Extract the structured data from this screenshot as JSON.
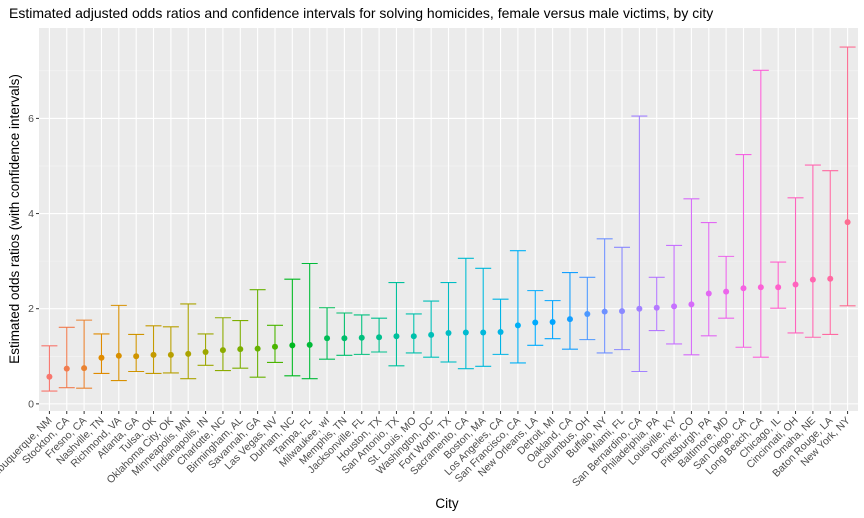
{
  "chart_data": {
    "type": "scatter",
    "title": "Estimated adjusted odds ratios and confidence intervals for solving homicides, female versus male victims, by city",
    "xlabel": "City",
    "ylabel": "Estimated odds ratios (with confidence intervals)",
    "ylim": [
      -0.15,
      7.9
    ],
    "yticks": [
      0,
      2,
      4,
      6
    ],
    "grid": true,
    "legend": "none",
    "panel_bg": "#ebebeb",
    "error_bars": true,
    "points": [
      {
        "city": "Albuquerque, NM",
        "or": 0.57,
        "lo": 0.27,
        "hi": 1.22,
        "color": "#F8766D"
      },
      {
        "city": "Stockton, CA",
        "or": 0.74,
        "lo": 0.34,
        "hi": 1.61,
        "color": "#F17D50"
      },
      {
        "city": "Fresno, CA",
        "or": 0.75,
        "lo": 0.33,
        "hi": 1.76,
        "color": "#EA8331"
      },
      {
        "city": "Nashville, TN",
        "or": 0.97,
        "lo": 0.64,
        "hi": 1.47,
        "color": "#E08B00"
      },
      {
        "city": "Richmond, VA",
        "or": 1.01,
        "lo": 0.49,
        "hi": 2.07,
        "color": "#D89000"
      },
      {
        "city": "Atlanta, GA",
        "or": 1.0,
        "lo": 0.68,
        "hi": 1.46,
        "color": "#CF9400"
      },
      {
        "city": "Tulsa, OK",
        "or": 1.03,
        "lo": 0.64,
        "hi": 1.64,
        "color": "#C49A00"
      },
      {
        "city": "Oklahoma City, OK",
        "or": 1.03,
        "lo": 0.65,
        "hi": 1.62,
        "color": "#B79F00"
      },
      {
        "city": "Minneapolis, MN",
        "or": 1.05,
        "lo": 0.53,
        "hi": 2.1,
        "color": "#ABA300"
      },
      {
        "city": "Indianapolis, IN",
        "or": 1.09,
        "lo": 0.81,
        "hi": 1.47,
        "color": "#9DA700"
      },
      {
        "city": "Charlotte, NC",
        "or": 1.13,
        "lo": 0.7,
        "hi": 1.81,
        "color": "#8CAB00"
      },
      {
        "city": "Birmingham, AL",
        "or": 1.15,
        "lo": 0.75,
        "hi": 1.75,
        "color": "#7CAE00"
      },
      {
        "city": "Savannah, GA",
        "or": 1.16,
        "lo": 0.56,
        "hi": 2.4,
        "color": "#67B100"
      },
      {
        "city": "Las Vegas, NV",
        "or": 1.2,
        "lo": 0.87,
        "hi": 1.65,
        "color": "#4AB500"
      },
      {
        "city": "Durham, NC",
        "or": 1.23,
        "lo": 0.59,
        "hi": 2.62,
        "color": "#00B81F"
      },
      {
        "city": "Tampa, FL",
        "or": 1.24,
        "lo": 0.53,
        "hi": 2.95,
        "color": "#00BA38"
      },
      {
        "city": "Milwaukee, wI",
        "or": 1.38,
        "lo": 0.94,
        "hi": 2.02,
        "color": "#00BC56"
      },
      {
        "city": "Memphis, TN",
        "or": 1.38,
        "lo": 1.02,
        "hi": 1.91,
        "color": "#00BE6C"
      },
      {
        "city": "Jacksonville, FL",
        "or": 1.39,
        "lo": 1.04,
        "hi": 1.87,
        "color": "#00BF7D"
      },
      {
        "city": "Houston, TX",
        "or": 1.4,
        "lo": 1.09,
        "hi": 1.8,
        "color": "#00C08E"
      },
      {
        "city": "San Antonio, TX",
        "or": 1.42,
        "lo": 0.8,
        "hi": 2.55,
        "color": "#00C19C"
      },
      {
        "city": "St. Louis, MO",
        "or": 1.42,
        "lo": 1.07,
        "hi": 1.89,
        "color": "#00C0AB"
      },
      {
        "city": "Washington, DC",
        "or": 1.45,
        "lo": 0.98,
        "hi": 2.16,
        "color": "#00BFB8"
      },
      {
        "city": "Fort Worth, TX",
        "or": 1.49,
        "lo": 0.88,
        "hi": 2.55,
        "color": "#00BDC4"
      },
      {
        "city": "Sacramento, CA",
        "or": 1.5,
        "lo": 0.74,
        "hi": 3.06,
        "color": "#00BBD0"
      },
      {
        "city": "Boston, MA",
        "or": 1.5,
        "lo": 0.79,
        "hi": 2.85,
        "color": "#00B8DB"
      },
      {
        "city": "Los Angeles, CA",
        "or": 1.51,
        "lo": 1.04,
        "hi": 2.2,
        "color": "#00B4E5"
      },
      {
        "city": "San Francisco, CA",
        "or": 1.65,
        "lo": 0.86,
        "hi": 3.22,
        "color": "#00B0F6"
      },
      {
        "city": "New Orleans, LA",
        "or": 1.71,
        "lo": 1.23,
        "hi": 2.38,
        "color": "#00ABFD"
      },
      {
        "city": "Detroit, MI",
        "or": 1.72,
        "lo": 1.37,
        "hi": 2.17,
        "color": "#00A5FF"
      },
      {
        "city": "Oakland, CA",
        "or": 1.78,
        "lo": 1.15,
        "hi": 2.76,
        "color": "#139FFF"
      },
      {
        "city": "Columbus, OH",
        "or": 1.89,
        "lo": 1.35,
        "hi": 2.66,
        "color": "#4C98FF"
      },
      {
        "city": "Buffalo, NY",
        "or": 1.94,
        "lo": 1.07,
        "hi": 3.47,
        "color": "#6F91FF"
      },
      {
        "city": "Miami, FL",
        "or": 1.95,
        "lo": 1.14,
        "hi": 3.29,
        "color": "#8A89FF"
      },
      {
        "city": "San Bernardino, CA",
        "or": 2.0,
        "lo": 0.68,
        "hi": 6.05,
        "color": "#A181FF"
      },
      {
        "city": "Philadelphia, PA",
        "or": 2.02,
        "lo": 1.54,
        "hi": 2.66,
        "color": "#B579FF"
      },
      {
        "city": "Louisville, KY",
        "or": 2.05,
        "lo": 1.26,
        "hi": 3.33,
        "color": "#C771FF"
      },
      {
        "city": "Denver, CO",
        "or": 2.09,
        "lo": 1.03,
        "hi": 4.31,
        "color": "#D66BFA"
      },
      {
        "city": "Pittsburgh, PA",
        "or": 2.32,
        "lo": 1.43,
        "hi": 3.81,
        "color": "#E268F3"
      },
      {
        "city": "Baltimore, MD",
        "or": 2.36,
        "lo": 1.8,
        "hi": 3.1,
        "color": "#EC65EB"
      },
      {
        "city": "San Diego, CA",
        "or": 2.43,
        "lo": 1.19,
        "hi": 5.24,
        "color": "#F563E2"
      },
      {
        "city": "Long Beach, CA",
        "or": 2.45,
        "lo": 0.98,
        "hi": 7.01,
        "color": "#FB61D7"
      },
      {
        "city": "Chicago, IL",
        "or": 2.45,
        "lo": 2.01,
        "hi": 2.98,
        "color": "#FF61CB"
      },
      {
        "city": "Cincinnati, OH",
        "or": 2.51,
        "lo": 1.49,
        "hi": 4.33,
        "color": "#FF63BE"
      },
      {
        "city": "Omaha, NE",
        "or": 2.61,
        "lo": 1.4,
        "hi": 5.02,
        "color": "#FF66B0"
      },
      {
        "city": "Baton Rouge, LA",
        "or": 2.63,
        "lo": 1.46,
        "hi": 4.9,
        "color": "#FF69A1"
      },
      {
        "city": "New York, NY",
        "or": 3.82,
        "lo": 2.06,
        "hi": 7.5,
        "color": "#FD6D92"
      }
    ]
  }
}
